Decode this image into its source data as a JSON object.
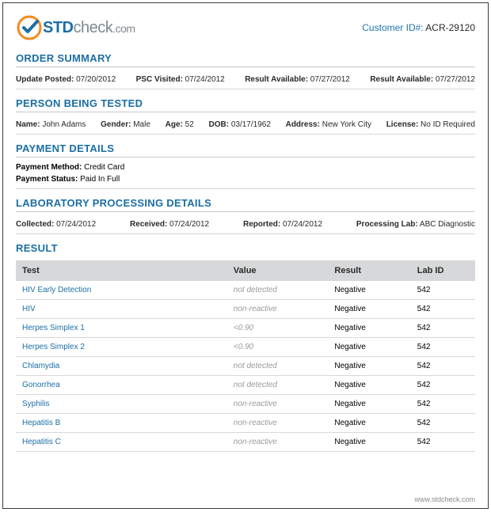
{
  "header": {
    "logo": {
      "std": "STD",
      "check": "check",
      "dotcom": ".com"
    },
    "customer_label": "Customer ID#:",
    "customer_id": "ACR-29120"
  },
  "order_summary": {
    "heading": "ORDER SUMMARY",
    "items": [
      {
        "label": "Update Posted:",
        "value": "07/20/2012"
      },
      {
        "label": "PSC Visited:",
        "value": "07/24/2012"
      },
      {
        "label": "Result Available:",
        "value": "07/27/2012"
      },
      {
        "label": "Result Available:",
        "value": "07/27/2012"
      }
    ]
  },
  "person": {
    "heading": "PERSON BEING TESTED",
    "items": [
      {
        "label": "Name:",
        "value": "John Adams"
      },
      {
        "label": "Gender:",
        "value": "Male"
      },
      {
        "label": "Age:",
        "value": "52"
      },
      {
        "label": "DOB:",
        "value": "03/17/1962"
      },
      {
        "label": "Address:",
        "value": "New York City"
      },
      {
        "label": "License:",
        "value": "No ID Required"
      }
    ]
  },
  "payment": {
    "heading": "PAYMENT DETAILS",
    "items": [
      {
        "label": "Payment Method:",
        "value": "Credit Card"
      },
      {
        "label": "Payment Status:",
        "value": "Paid In Full"
      }
    ]
  },
  "lab": {
    "heading": "LABORATORY PROCESSING DETAILS",
    "items": [
      {
        "label": "Collected:",
        "value": "07/24/2012"
      },
      {
        "label": "Received:",
        "value": "07/24/2012"
      },
      {
        "label": "Reported:",
        "value": "07/24/2012"
      },
      {
        "label": "Processing Lab:",
        "value": "ABC Diagnostic"
      }
    ]
  },
  "result": {
    "heading": "RESULT",
    "columns": [
      "Test",
      "Value",
      "Result",
      "Lab ID"
    ],
    "rows": [
      {
        "test": "HIV Early Detection",
        "value": "not detected",
        "result": "Negative",
        "lab": "542"
      },
      {
        "test": "HIV",
        "value": "non-reactive",
        "result": "Negative",
        "lab": "542"
      },
      {
        "test": "Herpes Simplex 1",
        "value": "<0.90",
        "result": "Negative",
        "lab": "542"
      },
      {
        "test": "Herpes Simplex 2",
        "value": "<0.90",
        "result": "Negative",
        "lab": "542"
      },
      {
        "test": "Chlamydia",
        "value": "not detected",
        "result": "Negative",
        "lab": "542"
      },
      {
        "test": "Gonorrhea",
        "value": "not detected",
        "result": "Negative",
        "lab": "542"
      },
      {
        "test": "Syphilis",
        "value": "non-reactive",
        "result": "Negative",
        "lab": "542"
      },
      {
        "test": "Hepatitis B",
        "value": "non-reactive",
        "result": "Negative",
        "lab": "542"
      },
      {
        "test": "Hepatitis C",
        "value": "non-reactive",
        "result": "Negative",
        "lab": "542"
      }
    ]
  },
  "footer": {
    "url": "www.stdcheck.com"
  }
}
